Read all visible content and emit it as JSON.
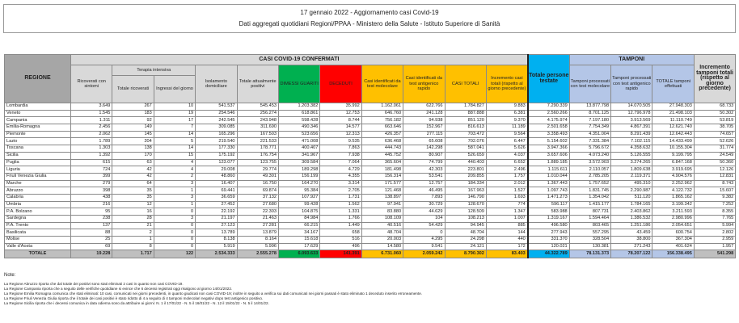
{
  "title": "17 gennaio 2022 - Aggiornamento casi Covid-19",
  "subtitle": "Dati aggregati quotidiani Regioni/PPAA - Ministero della Salute - Istituto Superiore di Sanità",
  "headers": {
    "regione": "REGIONE",
    "casi_group": "CASI COVID-19 CONFERMATI",
    "tamponi_group": "TAMPONI",
    "terapia": "Terapia intensiva",
    "ricoverati": "Ricoverati con sintomi",
    "totale_ricoverati": "Totale ricoverati",
    "ingressi": "Ingressi del giorno",
    "isolamento": "Isolamento domiciliare",
    "positivi": "Totale attualmente positivi",
    "dimessi": "DIMESSI GUARITI",
    "deceduti": "DECEDUTI",
    "casi_mol": "Casi identificati da test molecolare",
    "casi_ant": "Casi identificati da test antigenico rapido",
    "casi_tot": "CASI TOTALI",
    "incr_casi": "Incremento casi totali (rispetto al giorno precedente)",
    "persone": "Totale persone testate",
    "tamp_mol": "Tamponi processati con test molecolare",
    "tamp_ant": "Tamponi processati con test antigenico rapido",
    "tamp_tot": "TOTALE tamponi effettuati",
    "incr_tamp": "Incremento tamponi totali (rispetto al giorno precedente)"
  },
  "rows": [
    [
      "Lombardia",
      "3.649",
      "267",
      "10",
      "541.537",
      "545.453",
      "1.203.382",
      "35.992",
      "1.162.061",
      "622.766",
      "1.784.827",
      "9.883",
      "7.290.339",
      "13.877.798",
      "14.070.505",
      "27.948.303",
      "68.733"
    ],
    [
      "Veneto",
      "1.545",
      "183",
      "19",
      "254.546",
      "256.274",
      "618.861",
      "12.753",
      "646.760",
      "241.128",
      "887.888",
      "6.381",
      "2.560.266",
      "8.701.125",
      "12.796.978",
      "21.498.103",
      "50.302"
    ],
    [
      "Campania",
      "1.311",
      "92",
      "17",
      "242.545",
      "243.948",
      "598.428",
      "8.744",
      "756.182",
      "94.938",
      "851.120",
      "9.370",
      "4.175.974",
      "7.197.180",
      "3.913.569",
      "11.110.749",
      "53.819"
    ],
    [
      "Emilia-Romagna",
      "2.456",
      "149",
      "7",
      "309.085",
      "311.690",
      "490.346",
      "14.577",
      "663.646",
      "152.967",
      "816.613",
      "11.189",
      "2.501.658",
      "7.754.349",
      "4.867.391",
      "12.621.740",
      "38.705"
    ],
    [
      "Piemonte",
      "2.062",
      "145",
      "14",
      "165.296",
      "167.503",
      "523.656",
      "12.313",
      "426.357",
      "277.115",
      "703.472",
      "9.564",
      "3.358.493",
      "4.351.004",
      "8.291.439",
      "12.642.443",
      "74.657"
    ],
    [
      "Lazio",
      "1.789",
      "204",
      "5",
      "219.540",
      "221.533",
      "471.008",
      "9.535",
      "636.468",
      "65.608",
      "702.076",
      "6.447",
      "5.154.602",
      "7.331.384",
      "7.102.115",
      "14.433.499",
      "52.626"
    ],
    [
      "Toscana",
      "1.303",
      "138",
      "14",
      "177.330",
      "178.771",
      "400.407",
      "7.863",
      "444.743",
      "142.298",
      "587.041",
      "5.626",
      "3.947.366",
      "5.796.672",
      "4.358.632",
      "10.155.304",
      "31.774"
    ],
    [
      "Sicilia",
      "1.392",
      "170",
      "15",
      "175.192",
      "176.754",
      "341.967",
      "7.938",
      "445.752",
      "80.907",
      "526.659",
      "4.037",
      "3.657.606",
      "4.073.240",
      "5.126.555",
      "9.199.795",
      "24.549"
    ],
    [
      "Puglia",
      "615",
      "63",
      "4",
      "123.077",
      "123.755",
      "309.584",
      "7.064",
      "365.604",
      "74.799",
      "440.403",
      "6.652",
      "1.889.185",
      "3.572.903",
      "3.274.265",
      "6.847.168",
      "50.360"
    ],
    [
      "Liguria",
      "724",
      "42",
      "4",
      "29.008",
      "29.774",
      "189.298",
      "4.729",
      "181.498",
      "42.303",
      "223.801",
      "2.496",
      "1.115.611",
      "2.110.057",
      "1.809.638",
      "3.919.695",
      "12.126"
    ],
    [
      "Friuli Venezia Giulia",
      "399",
      "42",
      "2",
      "48.860",
      "49.301",
      "156.199",
      "4.355",
      "156.314",
      "53.541",
      "209.855",
      "1.757",
      "1.010.044",
      "2.785.205",
      "2.119.371",
      "4.904.576",
      "12.831"
    ],
    [
      "Marche",
      "279",
      "64",
      "3",
      "16.407",
      "16.750",
      "164.270",
      "3.314",
      "171.577",
      "12.757",
      "184.334",
      "2.012",
      "1.367.443",
      "1.757.652",
      "495.310",
      "2.252.962",
      "8.743"
    ],
    [
      "Abruzzo",
      "398",
      "35",
      "1",
      "69.441",
      "69.874",
      "95.384",
      "2.705",
      "121.468",
      "46.495",
      "167.963",
      "1.527",
      "1.097.743",
      "1.831.745",
      "2.290.987",
      "4.122.732",
      "15.607"
    ],
    [
      "Calabria",
      "438",
      "35",
      "3",
      "36.659",
      "37.132",
      "107.927",
      "1.731",
      "138.897",
      "7.893",
      "146.790",
      "1.693",
      "1.471.273",
      "1.354.042",
      "511.120",
      "1.865.162",
      "9.382"
    ],
    [
      "Umbria",
      "216",
      "12",
      "1",
      "27.452",
      "27.680",
      "99.428",
      "1.562",
      "97.941",
      "30.729",
      "128.670",
      "774",
      "596.117",
      "1.415.177",
      "1.784.165",
      "3.199.342",
      "7.252"
    ],
    [
      "P.A. Bolzano",
      "95",
      "16",
      "0",
      "22.192",
      "22.303",
      "104.875",
      "1.331",
      "83.880",
      "44.629",
      "128.509",
      "1.347",
      "583.988",
      "807.731",
      "2.403.862",
      "3.211.593",
      "8.355"
    ],
    [
      "Sardegna",
      "238",
      "28",
      "3",
      "21.197",
      "21.463",
      "84.984",
      "1.766",
      "108.109",
      "104",
      "108.213",
      "1.007",
      "1.319.167",
      "1.594.464",
      "1.386.532",
      "2.980.996",
      "7.765"
    ],
    [
      "P.A. Trento",
      "137",
      "21",
      "0",
      "27.123",
      "27.281",
      "66.215",
      "1.449",
      "40.516",
      "54.429",
      "94.945",
      "885",
      "496.580",
      "803.465",
      "1.251.186",
      "2.054.651",
      "5.994"
    ],
    [
      "Basilicata",
      "88",
      "2",
      "0",
      "13.789",
      "13.879",
      "34.167",
      "658",
      "48.704",
      "0",
      "48.704",
      "144",
      "277.943",
      "557.295",
      "43.459",
      "600.754",
      "2.802"
    ],
    [
      "Molise",
      "25",
      "1",
      "0",
      "8.138",
      "8.164",
      "15.618",
      "516",
      "20.003",
      "4.295",
      "24.298",
      "440",
      "331.370",
      "328.504",
      "38.800",
      "367.304",
      "2.959"
    ],
    [
      "Valle d'Aosta",
      "69",
      "8",
      "0",
      "5.919",
      "5.996",
      "17.629",
      "496",
      "14.580",
      "9.541",
      "24.121",
      "172",
      "120.021",
      "130.381",
      "271.243",
      "401.624",
      "1.957"
    ]
  ],
  "total": [
    "TOTALE",
    "19.228",
    "1.717",
    "122",
    "2.534.333",
    "2.555.278",
    "6.093.633",
    "141.391",
    "6.731.060",
    "2.059.242",
    "8.790.302",
    "83.403",
    "44.322.789",
    "78.131.373",
    "78.207.122",
    "156.338.495",
    "541.298"
  ],
  "notes": {
    "heading": "Note:",
    "lines": [
      "La Regione Abruzzo riporta che dal totale dei positivi sono stati eliminati 2 casi in quanto non casi COVID-19.",
      "La Regione Campania riporta che a seguito delle verifiche quotidiane si evince che 6 decessi registrati oggi risalgono al giorno 14/01/2022.",
      "La Regione Emilia Romagna comunica che stati eliminati: 10 casi, comunicati nei giorni precedenti, in quanto giudicati non casi COVID-19; inoltre in seguito a verifica sui dati comunicati nei giorni passati è stato eliminato 1 deceduto inserito erroneamente.",
      "La Regione Friuli Venezia Giulia riporta che il totale dei casi positivi è stato ridotto di 4 a seguito di 4 tamponi molecolari negativi dopo test antigenico positivo.",
      "La Regione Sicilia riporta che i decessi comunica in data odierna sono da attribuire ai giorni: N. 1 il 17/01/22 - N. 5 il 16/01/22 - N. 12 il 15/01/22 - N. 5 il 14/01/22."
    ]
  },
  "colors": {
    "dimessi": "#00b050",
    "deceduti": "#ff0000",
    "casi": "#ffc000",
    "persone": "#00b0f0",
    "tamponi": "#b4c6e7"
  }
}
